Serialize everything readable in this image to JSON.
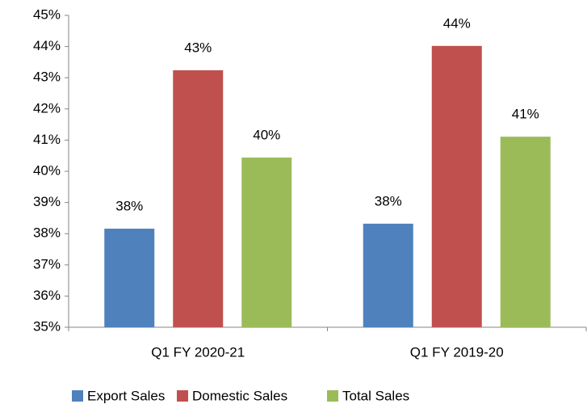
{
  "chart_data": {
    "type": "bar",
    "categories": [
      "Q1 FY 2020-21",
      "Q1 FY 2019-20"
    ],
    "series": [
      {
        "name": "Export Sales",
        "color": "#4f81bd",
        "values": [
          38.16,
          38.32
        ],
        "value_labels": [
          "38%",
          "38%"
        ]
      },
      {
        "name": "Domestic Sales",
        "color": "#c0504d",
        "values": [
          43.24,
          44.02
        ],
        "value_labels": [
          "43%",
          "44%"
        ]
      },
      {
        "name": "Total Sales",
        "color": "#9bbb59",
        "values": [
          40.44,
          41.11
        ],
        "value_labels": [
          "40%",
          "41%"
        ]
      }
    ],
    "ylim": [
      35,
      45
    ],
    "yticks": [
      {
        "value": 35,
        "label": "35%"
      },
      {
        "value": 36,
        "label": "36%"
      },
      {
        "value": 37,
        "label": "37%"
      },
      {
        "value": 38,
        "label": "38%"
      },
      {
        "value": 39,
        "label": "39%"
      },
      {
        "value": 40,
        "label": "40%"
      },
      {
        "value": 41,
        "label": "41%"
      },
      {
        "value": 42,
        "label": "42%"
      },
      {
        "value": 43,
        "label": "43%"
      },
      {
        "value": 44,
        "label": "44%"
      },
      {
        "value": 45,
        "label": "45%"
      }
    ],
    "grid": false,
    "legend": "bottom"
  }
}
